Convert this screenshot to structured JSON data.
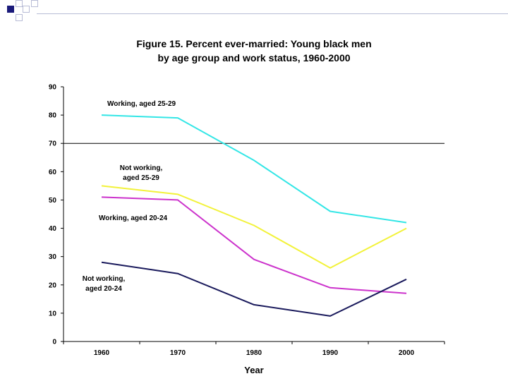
{
  "slide": {
    "decoration_color": "#1a1a7a",
    "decoration_outline": "#b8bcd6"
  },
  "chart_data": {
    "type": "line",
    "title_line1": "Figure 15. Percent ever-married: Young black men",
    "title_line2": "by age group and work status, 1960-2000",
    "xlabel": "Year",
    "ylabel": "",
    "categories": [
      "1960",
      "1970",
      "1980",
      "1990",
      "2000"
    ],
    "ylim": [
      0,
      90
    ],
    "yticks": [
      "0",
      "10",
      "20",
      "30",
      "40",
      "50",
      "60",
      "70",
      "80",
      "90"
    ],
    "reference_line": 70,
    "series": [
      {
        "name": "Working, aged 25-29",
        "label_lines": [
          "Working, aged 25-29"
        ],
        "color": "#33e6e6",
        "values": [
          80,
          79,
          64,
          46,
          42
        ]
      },
      {
        "name": "Not working, aged 25-29",
        "label_lines": [
          "Not working,",
          "aged 25-29"
        ],
        "color": "#f2f23a",
        "values": [
          55,
          52,
          41,
          26,
          40
        ]
      },
      {
        "name": "Working, aged 20-24",
        "label_lines": [
          "Working, aged 20-24"
        ],
        "color": "#cc33cc",
        "values": [
          51,
          50,
          29,
          19,
          17
        ]
      },
      {
        "name": "Not working, aged 20-24",
        "label_lines": [
          "Not working,",
          "aged 20-24"
        ],
        "color": "#1a1a5c",
        "values": [
          28,
          24,
          13,
          9,
          22
        ]
      }
    ]
  }
}
